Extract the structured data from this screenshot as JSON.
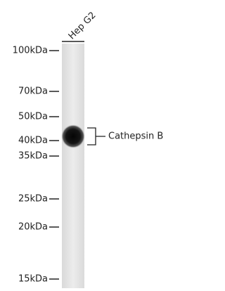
{
  "lane_label": "Hep G2",
  "markers": [
    "100kDa",
    "70kDa",
    "50kDa",
    "40kDa",
    "35kDa",
    "25kDa",
    "20kDa",
    "15kDa"
  ],
  "band_label": "Cathepsin B"
}
